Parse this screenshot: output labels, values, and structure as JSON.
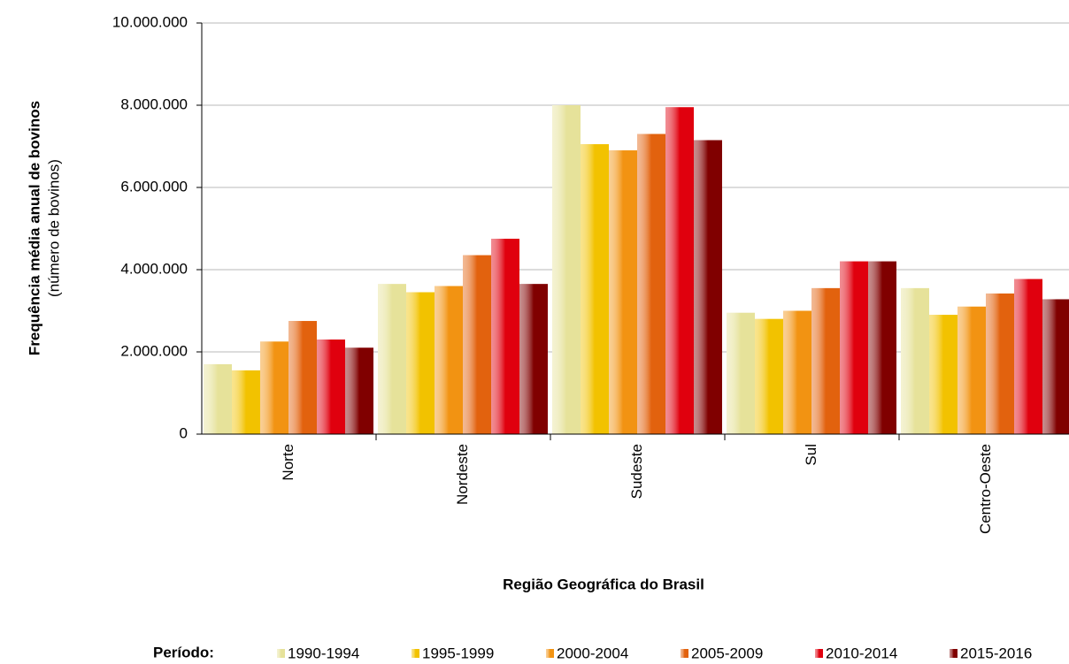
{
  "chart_data": {
    "type": "bar",
    "x_label": "Região Geográfica do Brasil",
    "y_label": "Frequência média anual  de bovinos",
    "y_sublabel": "(número de bovinos)",
    "legend_title": "Período:",
    "categories": [
      "Norte",
      "Nordeste",
      "Sudeste",
      "Sul",
      "Centro-Oeste"
    ],
    "series": [
      {
        "name": "1990-1994",
        "color": "#e6e29a",
        "values": [
          1700000,
          3650000,
          8000000,
          2950000,
          3550000
        ]
      },
      {
        "name": "1995-1999",
        "color": "#f2c200",
        "values": [
          1550000,
          3450000,
          7050000,
          2800000,
          2900000
        ]
      },
      {
        "name": "2000-2004",
        "color": "#f29312",
        "values": [
          2250000,
          3600000,
          6900000,
          3000000,
          3100000
        ]
      },
      {
        "name": "2005-2009",
        "color": "#e2620e",
        "values": [
          2750000,
          4350000,
          7300000,
          3550000,
          3420000
        ]
      },
      {
        "name": "2010-2014",
        "color": "#e0000e",
        "values": [
          2300000,
          4750000,
          7950000,
          4200000,
          3770000
        ]
      },
      {
        "name": "2015-2016",
        "color": "#800000",
        "values": [
          2100000,
          3650000,
          7150000,
          4200000,
          3280000
        ]
      }
    ],
    "ylim": [
      0,
      10000000
    ],
    "yticks": [
      0,
      {
        "value": 2000000,
        "label": "2.000.000"
      },
      {
        "value": 4000000,
        "label": "4.000.000"
      },
      {
        "value": 6000000,
        "label": "6.000.000"
      },
      {
        "value": 8000000,
        "label": "8.000.000"
      },
      {
        "value": 10000000,
        "label": "10.000.000"
      }
    ],
    "grid": true
  }
}
